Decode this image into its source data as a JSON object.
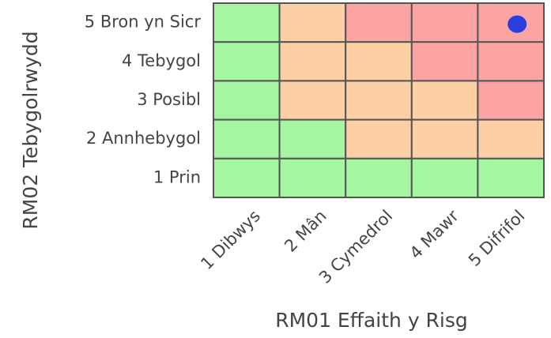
{
  "matrix": {
    "y_axis_title": "RM02 Tebygolrwydd",
    "x_axis_title": "RM01 Effaith y Risg",
    "rows": [
      "5 Bron yn Sicr",
      "4 Tebygol",
      "3 Posibl",
      "2 Annhebygol",
      "1 Prin"
    ],
    "columns": [
      "1 Dibwys",
      "2 Mân",
      "3 Cymedrol",
      "4 Mawr",
      "5 Difrifol"
    ],
    "cells": [
      [
        "#a6f5a0",
        "#fcd0a4",
        "#fca3a3",
        "#fca3a3",
        "#fca3a3"
      ],
      [
        "#a6f5a0",
        "#fcd0a4",
        "#fcd0a4",
        "#fca3a3",
        "#fca3a3"
      ],
      [
        "#a6f5a0",
        "#fcd0a4",
        "#fcd0a4",
        "#fcd0a4",
        "#fca3a3"
      ],
      [
        "#a6f5a0",
        "#a6f5a0",
        "#fcd0a4",
        "#fcd0a4",
        "#fcd0a4"
      ],
      [
        "#a6f5a0",
        "#a6f5a0",
        "#a6f5a0",
        "#a6f5a0",
        "#a6f5a0"
      ]
    ],
    "marker": {
      "row": 0,
      "column": 4,
      "color": "#2a3fdd"
    }
  }
}
